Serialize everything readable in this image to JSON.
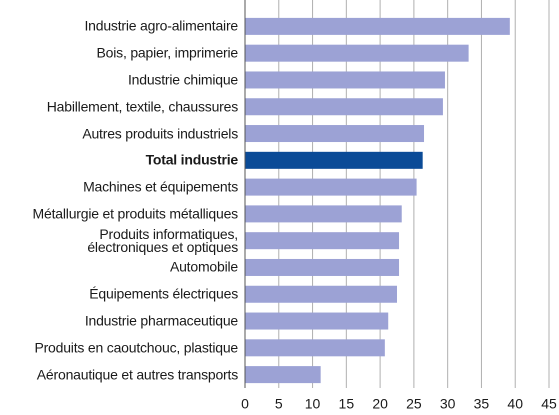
{
  "chart_data": {
    "type": "bar",
    "orientation": "horizontal",
    "categories": [
      "Industrie agro-alimentaire",
      "Bois, papier, imprimerie",
      "Industrie chimique",
      "Habillement, textile, chaussures",
      "Autres produits industriels",
      "Total industrie",
      "Machines et équipements",
      "Métallurgie et produits métalliques",
      "Produits informatiques,\nélectroniques et optiques",
      "Automobile",
      "Équipements électriques",
      "Industrie pharmaceutique",
      "Produits en caoutchouc, plastique",
      "Aéronautique et autres transports"
    ],
    "values": [
      39.2,
      33.1,
      29.6,
      29.3,
      26.5,
      26.3,
      25.4,
      23.2,
      22.8,
      22.8,
      22.5,
      21.2,
      20.7,
      11.2
    ],
    "color": "#9ca2d5",
    "highlight": {
      "index": 5,
      "color": "#0b4b97"
    },
    "xlim": [
      0,
      45
    ],
    "xticks": [
      0,
      5,
      10,
      15,
      20,
      25,
      30,
      35,
      40,
      45
    ],
    "grid": true
  }
}
